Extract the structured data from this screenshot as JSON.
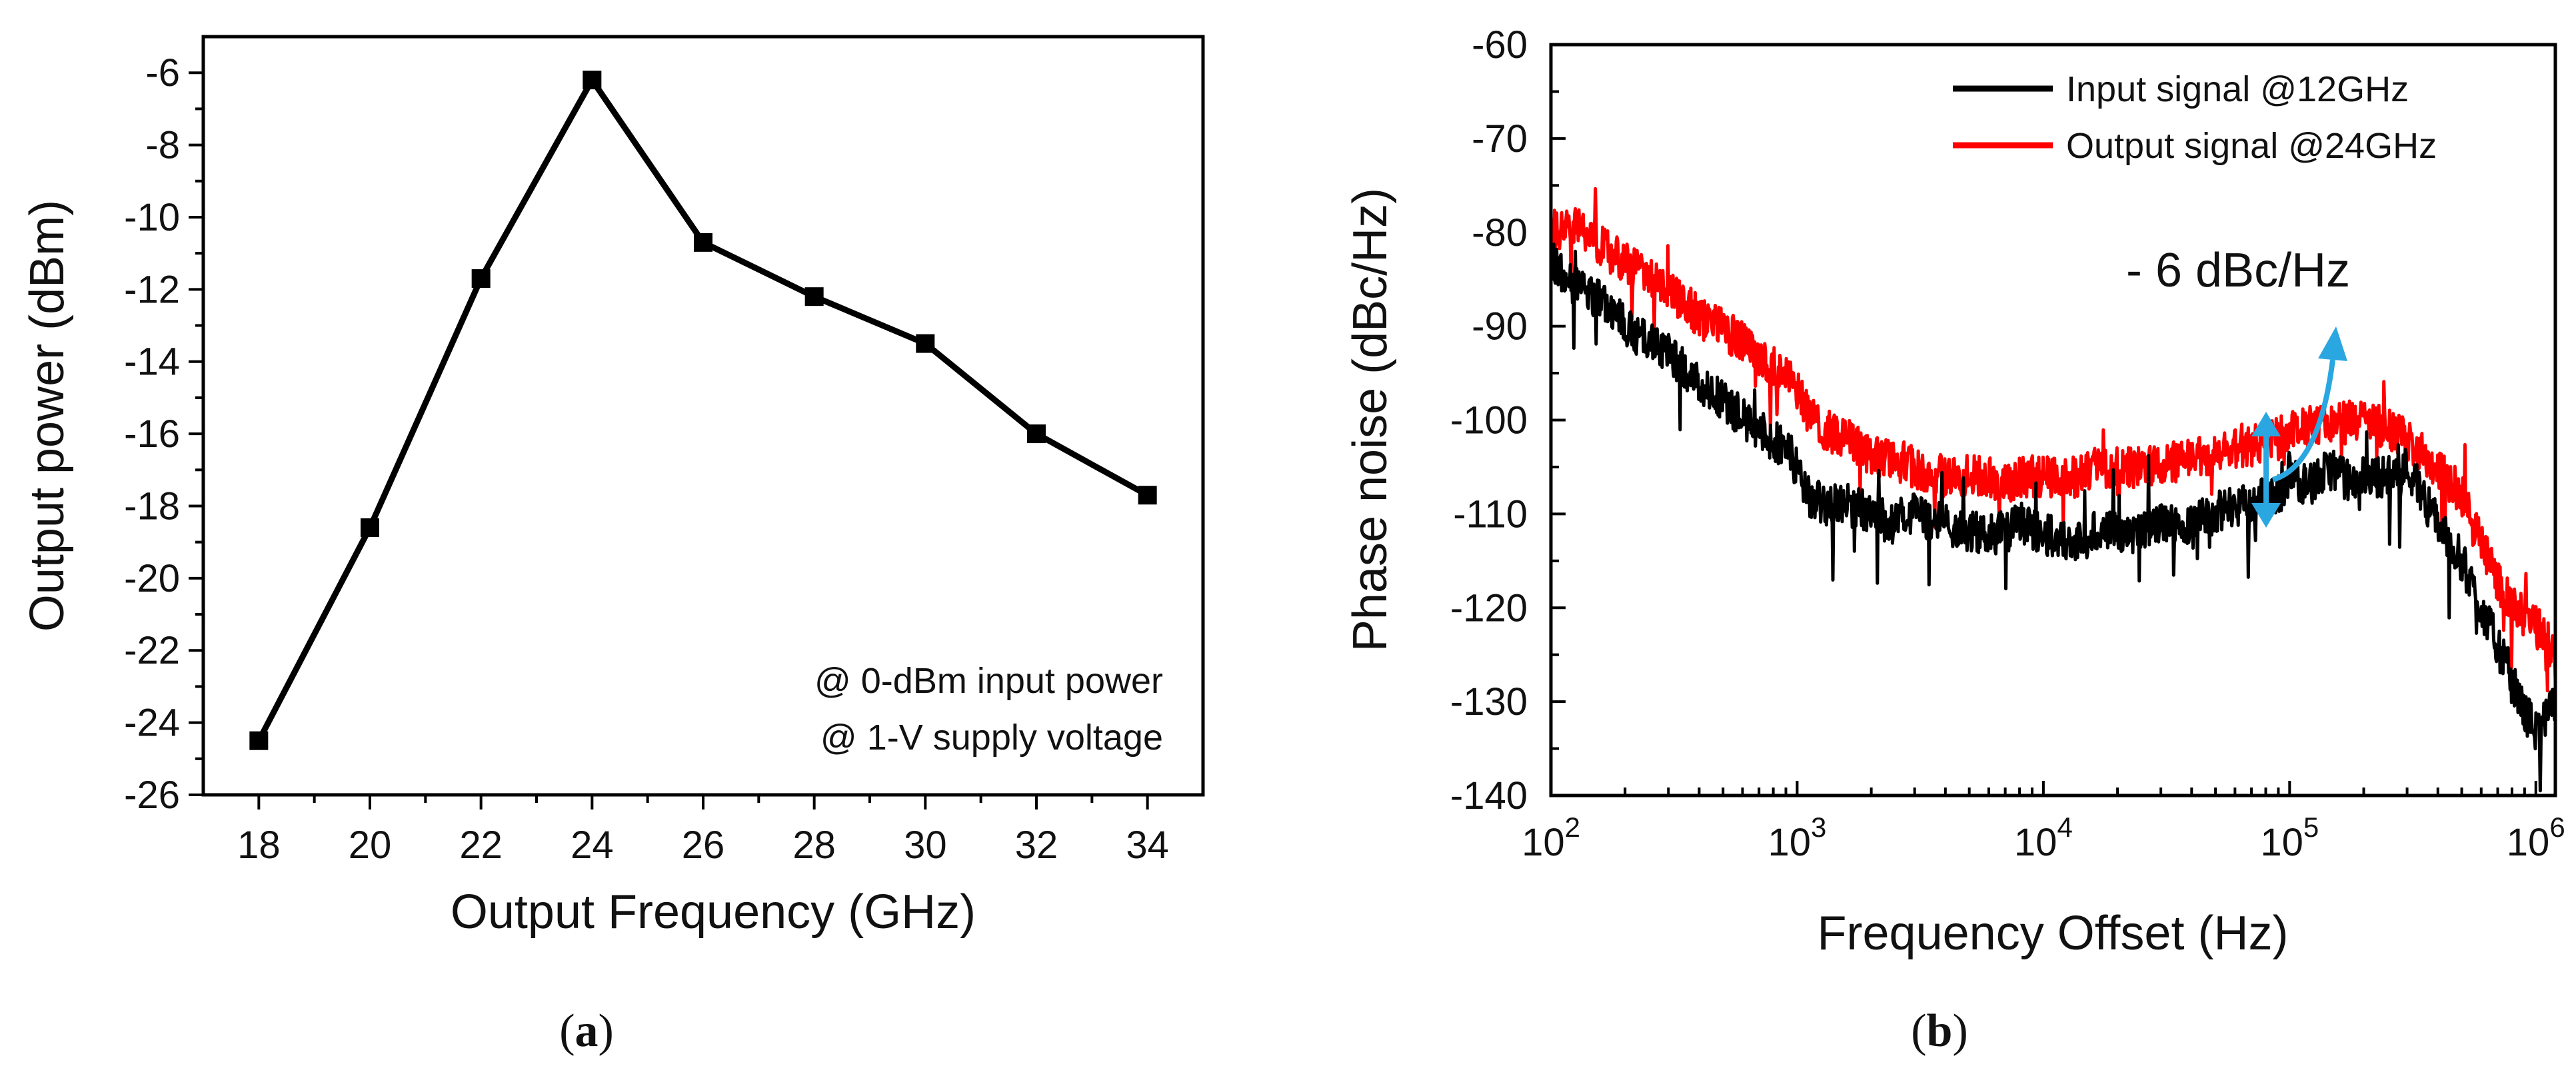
{
  "chart_data": [
    {
      "type": "line",
      "panel": "a",
      "xlabel": "Output Frequency (GHz)",
      "ylabel": "Output power (dBm)",
      "xlim": [
        17,
        35
      ],
      "ylim": [
        -26,
        -5
      ],
      "xticks": [
        18,
        20,
        22,
        24,
        26,
        28,
        30,
        32,
        34
      ],
      "yticks": [
        -26,
        -24,
        -22,
        -20,
        -18,
        -16,
        -14,
        -12,
        -10,
        -8,
        -6
      ],
      "series": [
        {
          "name": "Output power",
          "x": [
            18,
            20,
            22,
            24,
            26,
            28,
            30,
            32,
            34
          ],
          "values": [
            -24.5,
            -18.6,
            -11.7,
            -6.2,
            -10.7,
            -12.2,
            -13.5,
            -16.0,
            -17.7
          ],
          "color": "#000000",
          "marker": "square"
        }
      ],
      "annotations": [
        "@ 0-dBm input power",
        "@ 1-V supply voltage"
      ],
      "caption_open": "(",
      "caption_letter": "a",
      "caption_close": ")"
    },
    {
      "type": "line",
      "panel": "b",
      "xscale": "log",
      "xlabel": "Frequency Offset (Hz)",
      "ylabel": "Phase noise (dBc/Hz)",
      "xlim": [
        100,
        1200000
      ],
      "ylim": [
        -140,
        -60
      ],
      "xticks": [
        100,
        1000,
        10000,
        100000,
        1000000
      ],
      "xtick_labels": [
        {
          "base": "10",
          "exp": "2"
        },
        {
          "base": "10",
          "exp": "3"
        },
        {
          "base": "10",
          "exp": "4"
        },
        {
          "base": "10",
          "exp": "5"
        },
        {
          "base": "10",
          "exp": "6"
        }
      ],
      "yticks": [
        -140,
        -130,
        -120,
        -110,
        -100,
        -90,
        -80,
        -70,
        -60
      ],
      "series": [
        {
          "name": "Input signal @12GHz",
          "color": "#000000",
          "x": [
            100,
            130,
            170,
            220,
            300,
            400,
            550,
            700,
            900,
            1000,
            1100,
            1300,
            1600,
            2000,
            2400,
            3000,
            4000,
            5000,
            6000,
            7000,
            8000,
            10000,
            12000,
            14000,
            16000,
            20000,
            25000,
            30000,
            40000,
            50000,
            60000,
            70000,
            80000,
            90000,
            100000,
            120000,
            150000,
            180000,
            200000,
            250000,
            300000,
            350000,
            400000,
            500000,
            600000,
            700000,
            800000,
            900000,
            1000000,
            1100000,
            1200000
          ],
          "values": [
            -83,
            -86,
            -88,
            -91,
            -93,
            -96,
            -99,
            -101,
            -103,
            -105,
            -108,
            -109,
            -109,
            -110,
            -111,
            -110,
            -111,
            -112,
            -112,
            -112,
            -111,
            -112,
            -113,
            -113,
            -112,
            -112,
            -112,
            -111,
            -111,
            -110,
            -109,
            -109,
            -108,
            -108,
            -106,
            -107,
            -105,
            -107,
            -106,
            -106,
            -105,
            -108,
            -111,
            -115,
            -120,
            -124,
            -128,
            -131,
            -133,
            -132,
            -130
          ]
        },
        {
          "name": "Output signal @24GHz",
          "color": "#ff0000",
          "x": [
            100,
            130,
            170,
            220,
            300,
            400,
            550,
            700,
            900,
            1000,
            1100,
            1300,
            1600,
            2000,
            2400,
            3000,
            4000,
            5000,
            6000,
            7000,
            8000,
            10000,
            12000,
            14000,
            16000,
            20000,
            25000,
            30000,
            40000,
            50000,
            60000,
            70000,
            80000,
            90000,
            100000,
            120000,
            150000,
            180000,
            200000,
            250000,
            300000,
            350000,
            400000,
            500000,
            600000,
            700000,
            800000,
            900000,
            1000000,
            1100000,
            1200000
          ],
          "values": [
            -80,
            -79,
            -82,
            -84,
            -86,
            -89,
            -91,
            -93,
            -95,
            -97,
            -99,
            -101,
            -102,
            -104,
            -104,
            -105,
            -106,
            -106,
            -106,
            -107,
            -106,
            -106,
            -106,
            -106,
            -105,
            -105,
            -105,
            -105,
            -104,
            -104,
            -103,
            -103,
            -102,
            -102,
            -101,
            -101,
            -100,
            -100,
            -100,
            -101,
            -102,
            -104,
            -105,
            -108,
            -113,
            -117,
            -120,
            -121,
            -122,
            -123,
            -126
          ]
        }
      ],
      "annotation_text": "- 6 dBc/Hz",
      "caption_open": "(",
      "caption_letter": "b",
      "caption_close": ")"
    }
  ]
}
